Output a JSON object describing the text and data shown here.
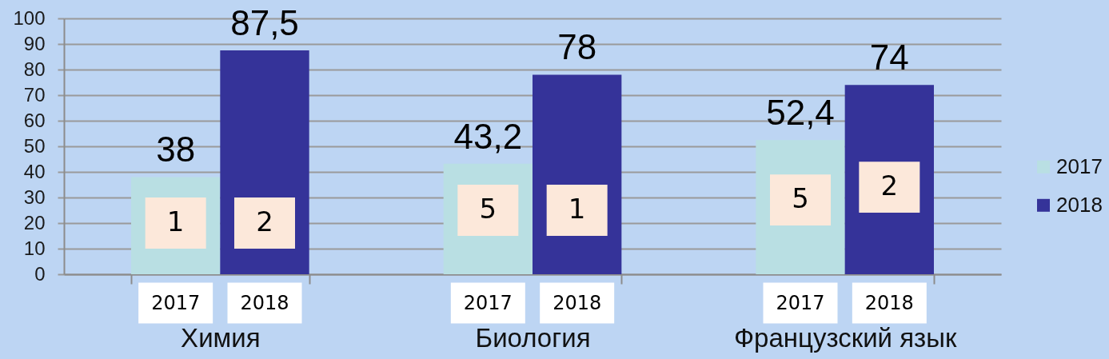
{
  "chart_data": {
    "type": "bar",
    "categories": [
      "Химия",
      "Биология",
      "Французский язык"
    ],
    "series": [
      {
        "name": "2017",
        "color": "#b9dfe3",
        "values": [
          38,
          43.2,
          52.4
        ],
        "value_labels": [
          "38",
          "43,2",
          "52,4"
        ]
      },
      {
        "name": "2018",
        "color": "#353399",
        "values": [
          87.5,
          78,
          74
        ],
        "value_labels": [
          "87,5",
          "78",
          "74"
        ]
      }
    ],
    "ylim": [
      0,
      100
    ],
    "yticks": [
      0,
      10,
      20,
      30,
      40,
      50,
      60,
      70,
      80,
      90,
      100
    ],
    "grid": "y",
    "legend": "right",
    "annotations": [
      {
        "text": "1",
        "x": "Химия",
        "y": 20
      },
      {
        "text": "2",
        "x": "Химия",
        "y": 20
      },
      {
        "text": "5",
        "x": "Биология",
        "y": 25
      },
      {
        "text": "1",
        "x": "Биология",
        "y": 25
      },
      {
        "text": "5",
        "x": "Французский язык",
        "y": 29
      },
      {
        "text": "2",
        "x": "Французский язык",
        "y": 34
      }
    ]
  }
}
